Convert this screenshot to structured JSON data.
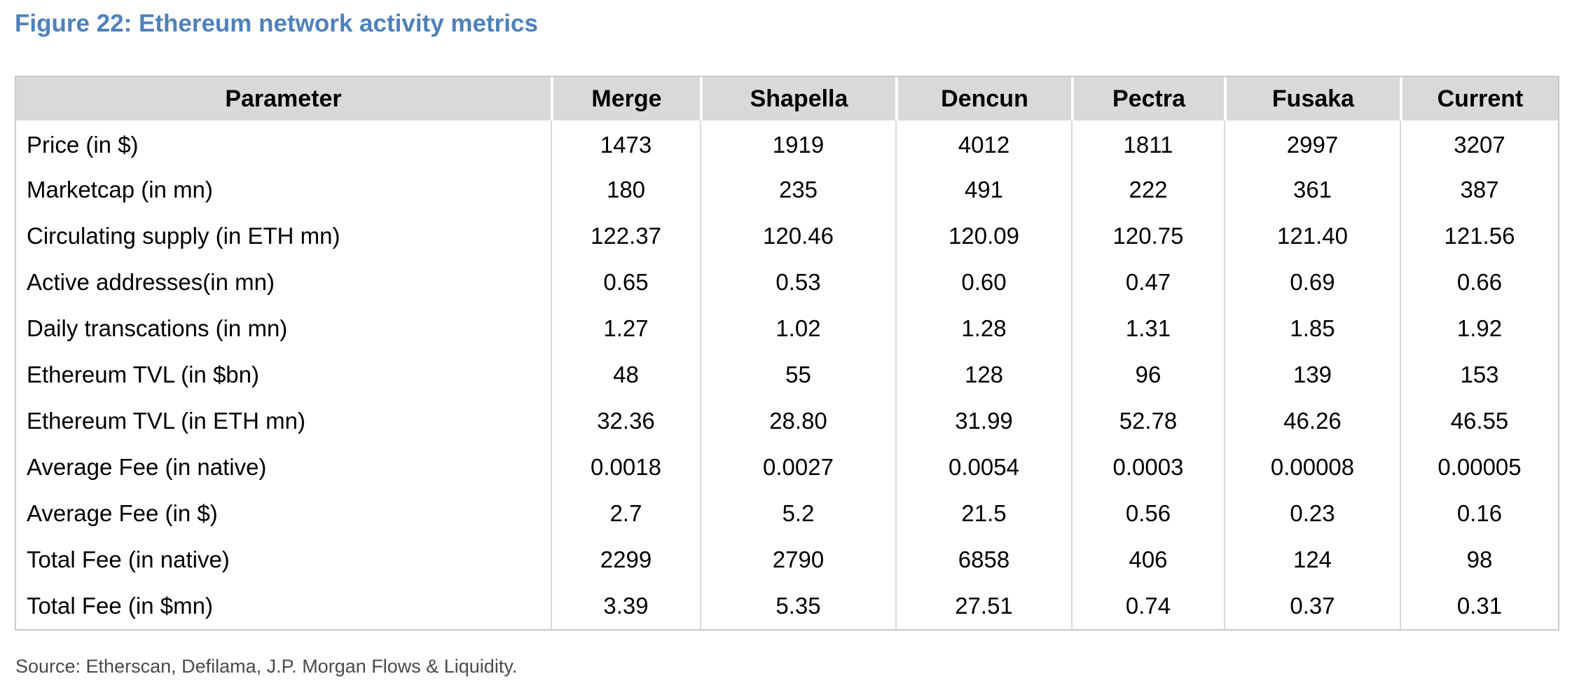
{
  "page": {
    "title": "Figure 22: Ethereum network activity metrics",
    "source": "Source: Etherscan, Defilama, J.P. Morgan Flows & Liquidity."
  },
  "colors": {
    "title_blue": "#4e81ba",
    "header_bg": "#d9d9d9",
    "table_border": "#c9c9c9",
    "body_divider": "#d9d9d9",
    "source_text": "#4a4a4a"
  },
  "chart_data": {
    "type": "table",
    "title": "Figure 22: Ethereum network activity metrics",
    "columns": [
      "Parameter",
      "Merge",
      "Shapella",
      "Dencun",
      "Pectra",
      "Fusaka",
      "Current"
    ],
    "rows": [
      {
        "parameter": "Price (in $)",
        "values": [
          "1473",
          "1919",
          "4012",
          "1811",
          "2997",
          "3207"
        ]
      },
      {
        "parameter": "Marketcap (in mn)",
        "values": [
          "180",
          "235",
          "491",
          "222",
          "361",
          "387"
        ]
      },
      {
        "parameter": "Circulating supply (in ETH mn)",
        "values": [
          "122.37",
          "120.46",
          "120.09",
          "120.75",
          "121.40",
          "121.56"
        ]
      },
      {
        "parameter": "Active addresses(in mn)",
        "values": [
          "0.65",
          "0.53",
          "0.60",
          "0.47",
          "0.69",
          "0.66"
        ]
      },
      {
        "parameter": "Daily transcations (in mn)",
        "values": [
          "1.27",
          "1.02",
          "1.28",
          "1.31",
          "1.85",
          "1.92"
        ]
      },
      {
        "parameter": "Ethereum TVL (in $bn)",
        "values": [
          "48",
          "55",
          "128",
          "96",
          "139",
          "153"
        ]
      },
      {
        "parameter": "Ethereum TVL (in ETH mn)",
        "values": [
          "32.36",
          "28.80",
          "31.99",
          "52.78",
          "46.26",
          "46.55"
        ]
      },
      {
        "parameter": "Average Fee (in native)",
        "values": [
          "0.0018",
          "0.0027",
          "0.0054",
          "0.0003",
          "0.00008",
          "0.00005"
        ]
      },
      {
        "parameter": "Average Fee (in $)",
        "values": [
          "2.7",
          "5.2",
          "21.5",
          "0.56",
          "0.23",
          "0.16"
        ]
      },
      {
        "parameter": "Total Fee (in native)",
        "values": [
          "2299",
          "2790",
          "6858",
          "406",
          "124",
          "98"
        ]
      },
      {
        "parameter": "Total Fee (in $mn)",
        "values": [
          "3.39",
          "5.35",
          "27.51",
          "0.74",
          "0.37",
          "0.31"
        ]
      }
    ],
    "source_note": "Source: Etherscan, Defilama, J.P. Morgan Flows & Liquidity."
  }
}
